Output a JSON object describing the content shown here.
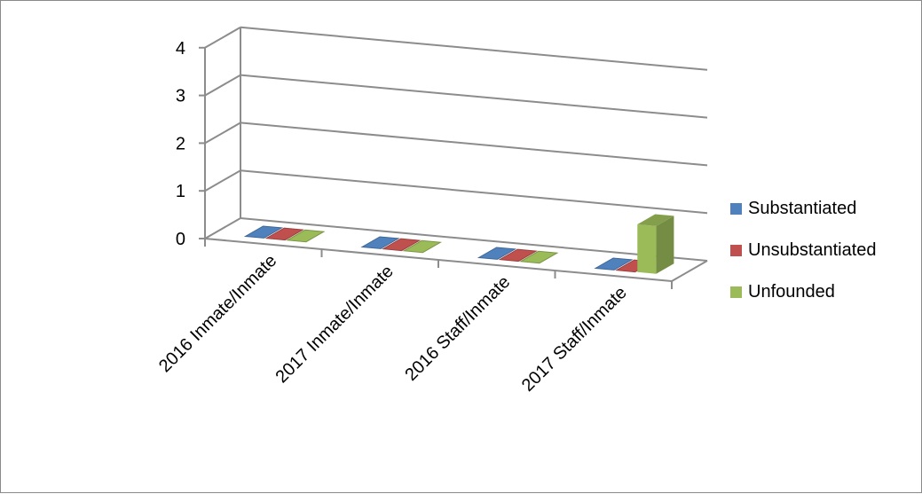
{
  "chart_data": {
    "type": "bar",
    "subtype": "3d-clustered-column",
    "categories": [
      "2016  Inmate/Inmate",
      "2017  Inmate/Inmate",
      "2016  Staff/Inmate",
      "2017  Staff/Inmate"
    ],
    "series": [
      {
        "name": "Substantiated",
        "color": "#4f81bd",
        "values": [
          0,
          0,
          0,
          0
        ]
      },
      {
        "name": "Unsubstantiated",
        "color": "#c0504d",
        "values": [
          0,
          0,
          0,
          0
        ]
      },
      {
        "name": "Unfounded",
        "color": "#9bbb59",
        "values": [
          0,
          0,
          0,
          1
        ]
      }
    ],
    "y_ticks": [
      "0",
      "1",
      "2",
      "3",
      "4"
    ],
    "ylim": [
      0,
      4
    ],
    "grid": true,
    "legend_position": "right"
  }
}
